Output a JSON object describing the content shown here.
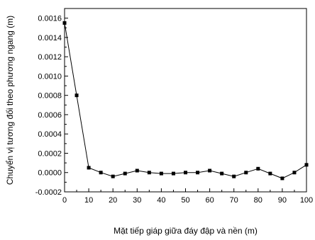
{
  "chart_data": {
    "type": "line",
    "title": "",
    "xlabel": "Mặt tiếp giáp giữa đáy đập và nền (m)",
    "ylabel": "Chuyển vị tương đối theo phương ngang (m)",
    "xlim": [
      0,
      100
    ],
    "ylim": [
      -0.0002,
      0.0017
    ],
    "xticks": [
      0,
      10,
      20,
      30,
      40,
      50,
      60,
      70,
      80,
      90,
      100
    ],
    "yticks": [
      -0.0002,
      0.0,
      0.0002,
      0.0004,
      0.0006,
      0.0008,
      0.001,
      0.0012,
      0.0014,
      0.0016
    ],
    "xtick_labels": [
      "0",
      "10",
      "20",
      "30",
      "40",
      "50",
      "60",
      "70",
      "80",
      "90",
      "100"
    ],
    "ytick_labels": [
      "-0.0002",
      "0.0000",
      "0.0002",
      "0.0004",
      "0.0006",
      "0.0008",
      "0.0010",
      "0.0012",
      "0.0014",
      "0.0016"
    ],
    "grid": false,
    "line_color": "#000000",
    "marker": "square",
    "series": [
      {
        "x": [
          0,
          5,
          10,
          15,
          20,
          25,
          30,
          35,
          40,
          45,
          50,
          55,
          60,
          65,
          70,
          75,
          80,
          85,
          90,
          95,
          100
        ],
        "y": [
          0.00155,
          0.0008,
          5e-05,
          0.0,
          -4e-05,
          -1e-05,
          2e-05,
          0.0,
          -1e-05,
          -1e-05,
          0.0,
          0.0,
          2e-05,
          -1e-05,
          -4e-05,
          0.0,
          4e-05,
          -1e-05,
          -6e-05,
          0.0,
          8e-05
        ]
      }
    ]
  }
}
